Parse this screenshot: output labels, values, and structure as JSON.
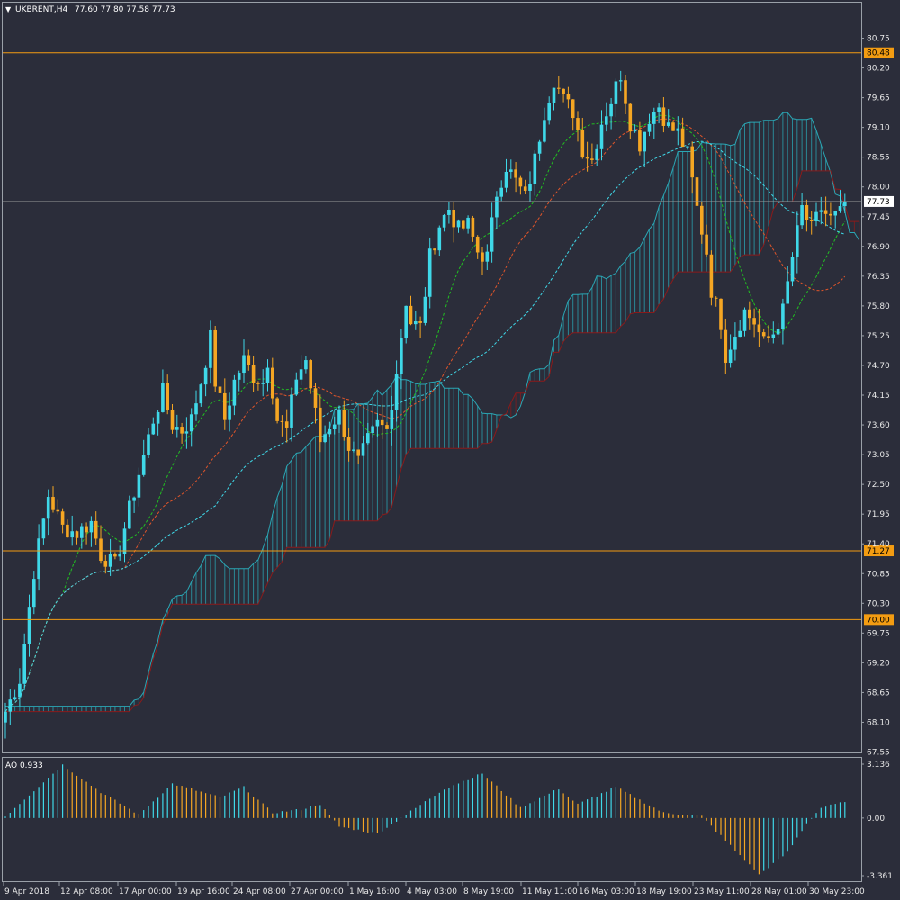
{
  "header": {
    "symbol": "UKBRENT,H4",
    "ohlc": "77.60 77.80 77.58 77.73"
  },
  "colors": {
    "background": "#2b2d3a",
    "bull": "#3fd8e8",
    "bear": "#f5a623",
    "level_line": "#f39c12",
    "price_line": "#9a9a9a",
    "cloud_up": "#2aa7b5",
    "cloud_down": "#8b1a1a",
    "ma_fast": "#22c022",
    "ma_mid": "#e0552a",
    "ma_slow": "#3fd8e8"
  },
  "chart_data": [
    {
      "type": "candlestick",
      "symbol": "UKBRENT",
      "timeframe": "H4",
      "ylim": [
        67.55,
        80.95
      ],
      "y_ticks": [
        "80.75",
        "80.20",
        "79.65",
        "79.10",
        "78.55",
        "78.00",
        "77.45",
        "76.90",
        "76.35",
        "75.80",
        "75.25",
        "74.70",
        "74.15",
        "73.60",
        "73.05",
        "72.50",
        "71.95",
        "71.40",
        "70.85",
        "70.30",
        "69.75",
        "69.20",
        "68.65",
        "68.10",
        "67.55"
      ],
      "x_ticks": [
        "9 Apr 2018",
        "12 Apr 08:00",
        "17 Apr 00:00",
        "19 Apr 16:00",
        "24 Apr 08:00",
        "27 Apr 00:00",
        "1 May 16:00",
        "4 May 03:00",
        "8 May 19:00",
        "11 May 11:00",
        "16 May 03:00",
        "18 May 19:00",
        "23 May 11:00",
        "28 May 01:00",
        "30 May 23:00"
      ],
      "levels": [
        "80.48",
        "71.27",
        "70.00"
      ],
      "current_price": "77.73",
      "close_path": [
        [
          0,
          68.3
        ],
        [
          3,
          68.9
        ],
        [
          6,
          70.9
        ],
        [
          9,
          72.3
        ],
        [
          12,
          71.7
        ],
        [
          15,
          71.6
        ],
        [
          18,
          71.8
        ],
        [
          20,
          71.2
        ],
        [
          23,
          71.0
        ],
        [
          25,
          71.7
        ],
        [
          28,
          72.7
        ],
        [
          31,
          73.7
        ],
        [
          33,
          74.2
        ],
        [
          35,
          73.6
        ],
        [
          37,
          73.5
        ],
        [
          39,
          73.7
        ],
        [
          41,
          74.4
        ],
        [
          43,
          75.2
        ],
        [
          44,
          74.4
        ],
        [
          46,
          73.7
        ],
        [
          48,
          74.4
        ],
        [
          50,
          74.8
        ],
        [
          52,
          74.5
        ],
        [
          54,
          74.4
        ],
        [
          55,
          74.8
        ],
        [
          57,
          73.7
        ],
        [
          59,
          73.5
        ],
        [
          61,
          74.5
        ],
        [
          63,
          74.8
        ],
        [
          66,
          73.3
        ],
        [
          68,
          73.6
        ],
        [
          70,
          73.8
        ],
        [
          72,
          73.2
        ],
        [
          74,
          72.9
        ],
        [
          76,
          73.3
        ],
        [
          78,
          73.6
        ],
        [
          80,
          73.5
        ],
        [
          82,
          74.6
        ],
        [
          84,
          75.9
        ],
        [
          85,
          75.5
        ],
        [
          87,
          75.4
        ],
        [
          89,
          76.7
        ],
        [
          91,
          77.3
        ],
        [
          93,
          77.6
        ],
        [
          95,
          77.2
        ],
        [
          97,
          77.3
        ],
        [
          99,
          76.8
        ],
        [
          101,
          76.7
        ],
        [
          103,
          77.9
        ],
        [
          105,
          78.4
        ],
        [
          107,
          78.1
        ],
        [
          109,
          77.8
        ],
        [
          111,
          78.5
        ],
        [
          113,
          79.4
        ],
        [
          115,
          80.0
        ],
        [
          117,
          79.6
        ],
        [
          119,
          79.4
        ],
        [
          121,
          78.7
        ],
        [
          123,
          78.5
        ],
        [
          125,
          79.2
        ],
        [
          127,
          79.6
        ],
        [
          129,
          80.1
        ],
        [
          131,
          79.2
        ],
        [
          133,
          78.8
        ],
        [
          135,
          79.3
        ],
        [
          137,
          79.5
        ],
        [
          139,
          79.1
        ],
        [
          141,
          79.0
        ],
        [
          143,
          78.6
        ],
        [
          145,
          77.6
        ],
        [
          147,
          76.8
        ],
        [
          148,
          76.1
        ],
        [
          150,
          75.5
        ],
        [
          151,
          74.9
        ],
        [
          153,
          75.3
        ],
        [
          155,
          75.7
        ],
        [
          157,
          75.5
        ],
        [
          159,
          75.1
        ],
        [
          161,
          75.3
        ],
        [
          163,
          75.7
        ],
        [
          165,
          76.7
        ],
        [
          167,
          77.6
        ],
        [
          169,
          77.2
        ],
        [
          171,
          77.6
        ],
        [
          173,
          77.4
        ],
        [
          175,
          77.5
        ],
        [
          176,
          77.73
        ]
      ]
    },
    {
      "type": "bar",
      "indicator": "AO",
      "label": "AO 0.933",
      "ylim": [
        -3.361,
        3.136
      ],
      "y_ticks": [
        "3.136",
        "0.00",
        "-3.361"
      ],
      "ao_path": [
        [
          0,
          0.1
        ],
        [
          12,
          3.1
        ],
        [
          20,
          1.5
        ],
        [
          28,
          0.2
        ],
        [
          35,
          2.0
        ],
        [
          45,
          1.2
        ],
        [
          50,
          1.8
        ],
        [
          56,
          0.3
        ],
        [
          62,
          0.5
        ],
        [
          66,
          0.8
        ],
        [
          70,
          -0.5
        ],
        [
          78,
          -0.9
        ],
        [
          84,
          0.2
        ],
        [
          92,
          1.7
        ],
        [
          100,
          2.6
        ],
        [
          108,
          0.6
        ],
        [
          116,
          1.7
        ],
        [
          120,
          0.8
        ],
        [
          128,
          1.8
        ],
        [
          138,
          0.3
        ],
        [
          146,
          0.1
        ],
        [
          152,
          -1.6
        ],
        [
          158,
          -3.3
        ],
        [
          164,
          -2.0
        ],
        [
          168,
          -0.3
        ],
        [
          171,
          0.6
        ],
        [
          176,
          0.93
        ]
      ]
    }
  ]
}
